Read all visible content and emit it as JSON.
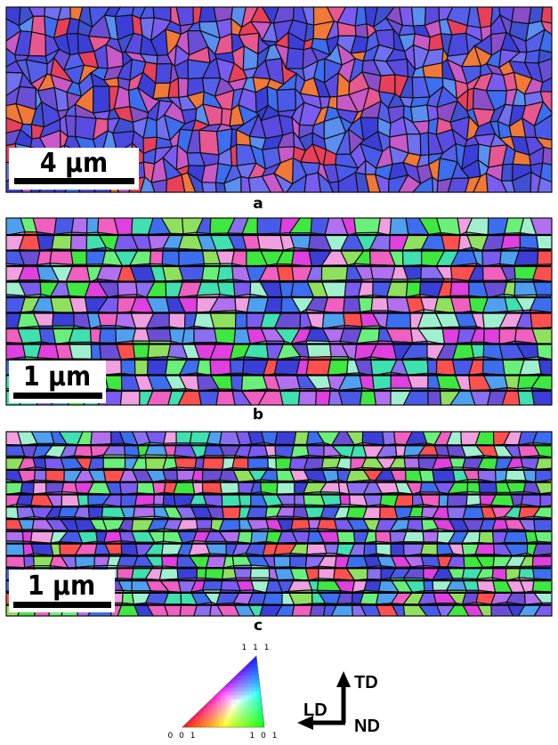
{
  "panels": [
    {
      "label": "a",
      "scale_bar": "4 µm"
    },
    {
      "label": "b",
      "scale_bar": "1 µm"
    },
    {
      "label": "c",
      "scale_bar": "1 µm"
    }
  ],
  "legend": {
    "triangle": {
      "top": "1 1 1",
      "left": "0 0 1",
      "right": "1 0 1"
    },
    "axes": {
      "up": "TD",
      "left": "LD",
      "center": "ND"
    }
  }
}
